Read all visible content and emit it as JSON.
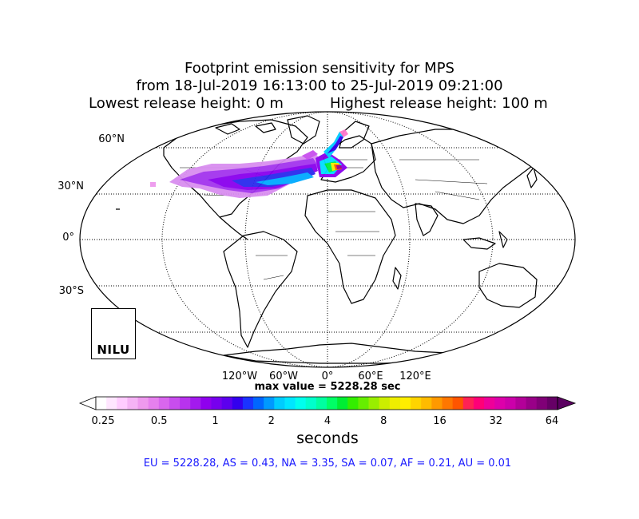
{
  "title": {
    "line1": "Footprint emission sensitivity for MPS",
    "line2": "from 18-Jul-2019 16:13:00 to 25-Jul-2019 09:21:00",
    "lowest": "Lowest release height: 0 m",
    "highest": "Highest release height: 100 m"
  },
  "map": {
    "projection": "Robinson",
    "lat_labels": [
      "60°N",
      "30°N",
      "0°",
      "30°S"
    ],
    "lon_labels": [
      "120°W",
      "60°W",
      "0°",
      "60°E",
      "120°E"
    ]
  },
  "max_value": "max value = 5228.28 sec",
  "colorbar": {
    "ticks": [
      "0.25",
      "0.5",
      "1",
      "2",
      "4",
      "8",
      "16",
      "32",
      "64"
    ],
    "label": "seconds",
    "colors": [
      "#ffffff",
      "#ffe6ff",
      "#ffccff",
      "#f5b3f5",
      "#ee99ee",
      "#e680ee",
      "#d966ee",
      "#c84dee",
      "#b833ee",
      "#a31aee",
      "#8f00ee",
      "#7700ee",
      "#5c00ee",
      "#3300ee",
      "#1a33ff",
      "#0066ff",
      "#0099ff",
      "#00ccff",
      "#00e6ff",
      "#00ffee",
      "#00ffcc",
      "#00ffa0",
      "#00ff66",
      "#00ee33",
      "#33ee00",
      "#66ee00",
      "#99ee00",
      "#ccee00",
      "#eeee00",
      "#ffee00",
      "#ffd400",
      "#ffbb00",
      "#ff9900",
      "#ff7700",
      "#ff5500",
      "#ff2255",
      "#ff0077",
      "#ee0099",
      "#dd00aa",
      "#cc00aa",
      "#b30099",
      "#990088",
      "#800077",
      "#660066"
    ]
  },
  "region_summary": "EU = 5228.28,  AS = 0.43,  NA = 3.35,  SA = 0.07,  AF = 0.21,  AU = 0.01",
  "logo": {
    "text": "NILU"
  }
}
